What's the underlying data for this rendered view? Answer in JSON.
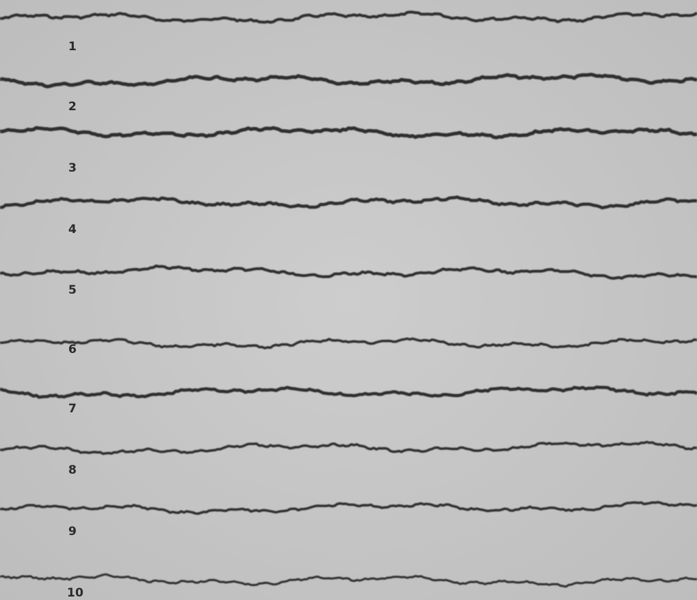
{
  "labels": [
    "1",
    "2",
    "3",
    "4",
    "5",
    "6",
    "7",
    "8",
    "9",
    "10"
  ]
}
